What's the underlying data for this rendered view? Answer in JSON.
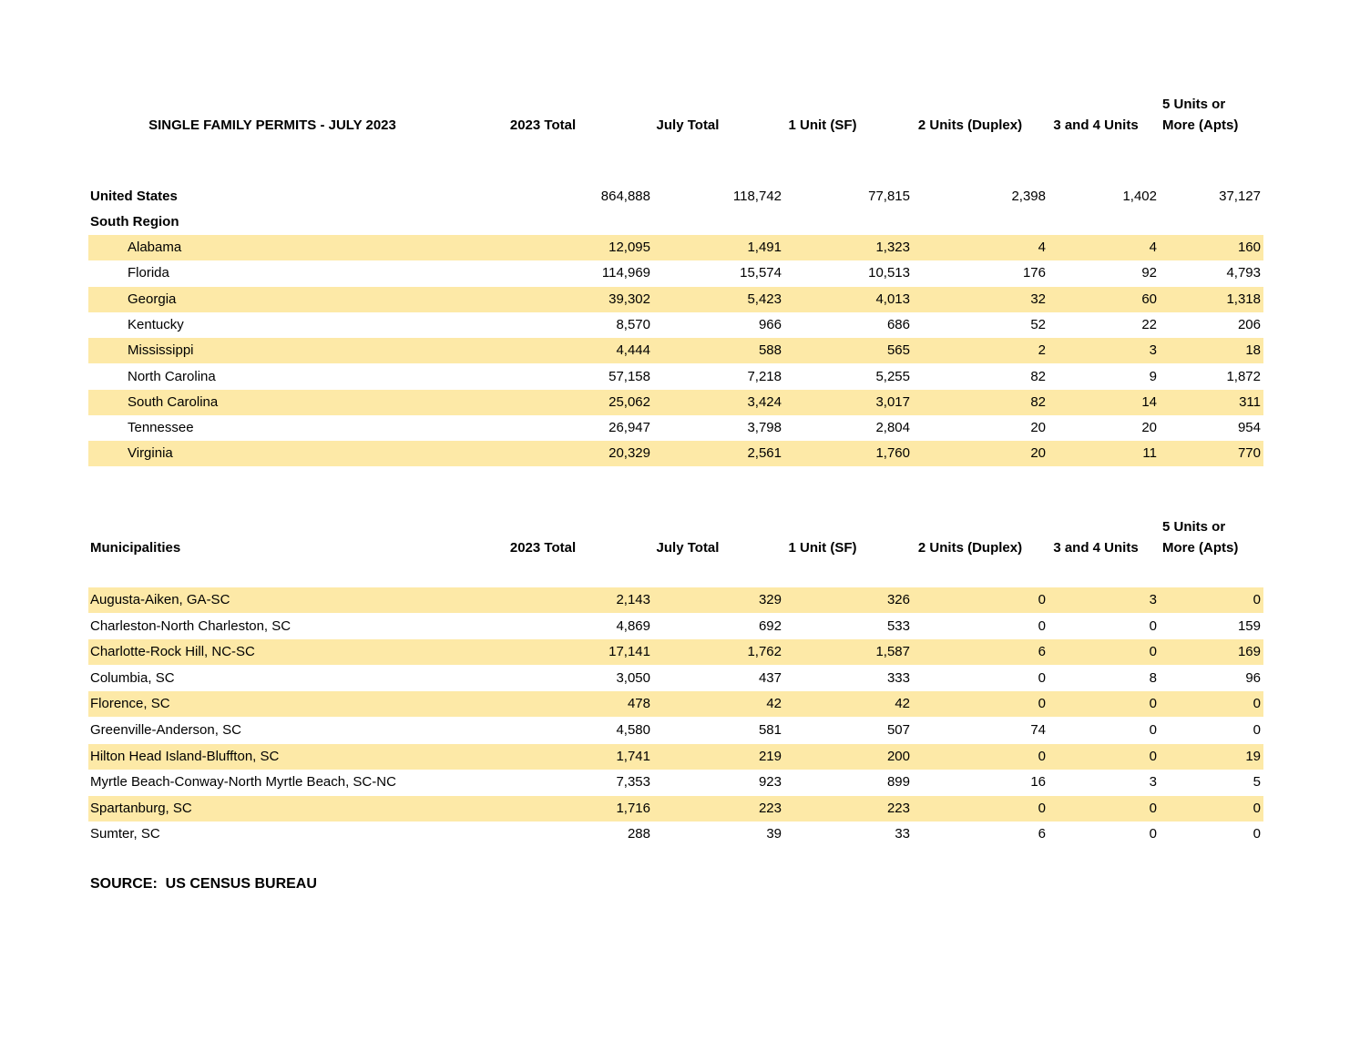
{
  "table1": {
    "title": "SINGLE FAMILY PERMITS - JULY 2023",
    "columns": [
      "2023 Total",
      "July Total",
      "1 Unit (SF)",
      "2 Units (Duplex)",
      "3 and 4 Units",
      "5 Units or More (Apts)"
    ],
    "total": {
      "name": "United States",
      "values": [
        "864,888",
        "118,742",
        "77,815",
        "2,398",
        "1,402",
        "37,127"
      ]
    },
    "region": "South Region",
    "rows": [
      {
        "name": "Alabama",
        "values": [
          "12,095",
          "1,491",
          "1,323",
          "4",
          "4",
          "160"
        ]
      },
      {
        "name": "Florida",
        "values": [
          "114,969",
          "15,574",
          "10,513",
          "176",
          "92",
          "4,793"
        ]
      },
      {
        "name": "Georgia",
        "values": [
          "39,302",
          "5,423",
          "4,013",
          "32",
          "60",
          "1,318"
        ]
      },
      {
        "name": "Kentucky",
        "values": [
          "8,570",
          "966",
          "686",
          "52",
          "22",
          "206"
        ]
      },
      {
        "name": "Mississippi",
        "values": [
          "4,444",
          "588",
          "565",
          "2",
          "3",
          "18"
        ]
      },
      {
        "name": "North Carolina",
        "values": [
          "57,158",
          "7,218",
          "5,255",
          "82",
          "9",
          "1,872"
        ]
      },
      {
        "name": "South Carolina",
        "values": [
          "25,062",
          "3,424",
          "3,017",
          "82",
          "14",
          "311"
        ]
      },
      {
        "name": "Tennessee",
        "values": [
          "26,947",
          "3,798",
          "2,804",
          "20",
          "20",
          "954"
        ]
      },
      {
        "name": "Virginia",
        "values": [
          "20,329",
          "2,561",
          "1,760",
          "20",
          "11",
          "770"
        ]
      }
    ]
  },
  "table2": {
    "title": "Municipalities",
    "columns": [
      "2023 Total",
      "July Total",
      "1 Unit (SF)",
      "2 Units (Duplex)",
      "3 and 4 Units",
      "5 Units or More (Apts)"
    ],
    "rows": [
      {
        "name": "Augusta-Aiken, GA-SC",
        "values": [
          "2,143",
          "329",
          "326",
          "0",
          "3",
          "0"
        ]
      },
      {
        "name": "Charleston-North Charleston, SC",
        "values": [
          "4,869",
          "692",
          "533",
          "0",
          "0",
          "159"
        ]
      },
      {
        "name": "Charlotte-Rock Hill, NC-SC",
        "values": [
          "17,141",
          "1,762",
          "1,587",
          "6",
          "0",
          "169"
        ]
      },
      {
        "name": "Columbia, SC",
        "values": [
          "3,050",
          "437",
          "333",
          "0",
          "8",
          "96"
        ]
      },
      {
        "name": "Florence, SC",
        "values": [
          "478",
          "42",
          "42",
          "0",
          "0",
          "0"
        ]
      },
      {
        "name": "Greenville-Anderson, SC",
        "values": [
          "4,580",
          "581",
          "507",
          "74",
          "0",
          "0"
        ]
      },
      {
        "name": "Hilton Head Island-Bluffton, SC",
        "values": [
          "1,741",
          "219",
          "200",
          "0",
          "0",
          "19"
        ]
      },
      {
        "name": "Myrtle Beach-Conway-North Myrtle Beach, SC-NC",
        "values": [
          "7,353",
          "923",
          "899",
          "16",
          "3",
          "5"
        ]
      },
      {
        "name": "Spartanburg, SC",
        "values": [
          "1,716",
          "223",
          "223",
          "0",
          "0",
          "0"
        ]
      },
      {
        "name": "Sumter, SC",
        "values": [
          "288",
          "39",
          "33",
          "6",
          "0",
          "0"
        ]
      }
    ]
  },
  "source": "SOURCE:  US CENSUS BUREAU"
}
